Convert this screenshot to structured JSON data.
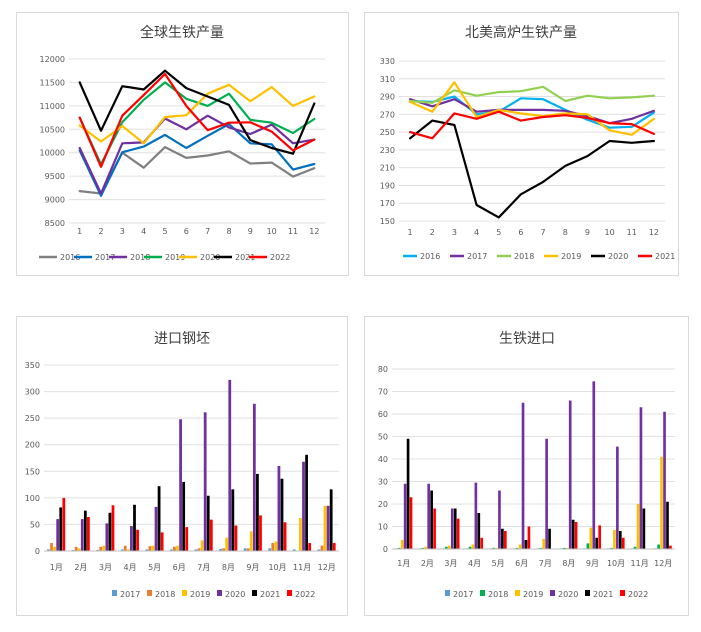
{
  "chart_data": [
    {
      "type": "line",
      "title": "全球生铁产量",
      "categories": [
        "1",
        "2",
        "3",
        "4",
        "5",
        "6",
        "7",
        "8",
        "9",
        "10",
        "11",
        "12"
      ],
      "yticks": [
        "8500",
        "9000",
        "9500",
        "10000",
        "10500",
        "11000",
        "11500",
        "12000"
      ],
      "ylim": [
        8500,
        12000
      ],
      "grid": true,
      "legend_position": "bottom",
      "series": [
        {
          "name": "2016",
          "color": "#808080",
          "values": [
            9180,
            9130,
            10000,
            9680,
            10120,
            9890,
            9940,
            10030,
            9770,
            9790,
            9490,
            9670
          ]
        },
        {
          "name": "2017",
          "color": "#0070c0",
          "values": [
            10050,
            9080,
            10010,
            10130,
            10380,
            10100,
            10360,
            10610,
            10200,
            10180,
            9640,
            9760
          ]
        },
        {
          "name": "2018",
          "color": "#7030a0",
          "values": [
            10100,
            9130,
            10200,
            10220,
            10730,
            10500,
            10790,
            10540,
            10400,
            10600,
            10200,
            10280
          ]
        },
        {
          "name": "2019",
          "color": "#00b050",
          "values": [
            10750,
            9750,
            10650,
            11130,
            11500,
            11150,
            11000,
            11260,
            10700,
            10640,
            10420,
            10720
          ]
        },
        {
          "name": "2020",
          "color": "#ffc000",
          "values": [
            10580,
            10240,
            10570,
            10200,
            10760,
            10800,
            11260,
            11450,
            11100,
            11400,
            11000,
            11200
          ]
        },
        {
          "name": "2021",
          "color": "#000000",
          "values": [
            11500,
            10470,
            11420,
            11350,
            11750,
            11380,
            11200,
            11020,
            10270,
            10100,
            9980,
            11050
          ]
        },
        {
          "name": "2022",
          "color": "#ff0000",
          "values": [
            10750,
            9700,
            10790,
            11230,
            11680,
            11000,
            10480,
            10640,
            10650,
            10450,
            10050,
            10280
          ]
        }
      ]
    },
    {
      "type": "line",
      "title": "北美高炉生铁产量",
      "categories": [
        "1",
        "2",
        "3",
        "4",
        "5",
        "6",
        "7",
        "8",
        "9",
        "10",
        "11",
        "12"
      ],
      "yticks": [
        "150",
        "170",
        "190",
        "210",
        "230",
        "250",
        "270",
        "290",
        "310",
        "330"
      ],
      "ylim": [
        150,
        330
      ],
      "grid": true,
      "legend_position": "bottom",
      "series": [
        {
          "name": "2016",
          "color": "#00b0f0",
          "values": [
            285,
            284,
            290,
            270,
            273,
            288,
            287,
            275,
            264,
            255,
            256,
            272
          ]
        },
        {
          "name": "2017",
          "color": "#7030a0",
          "values": [
            287,
            279,
            287,
            273,
            275,
            275,
            275,
            274,
            268,
            260,
            265,
            274
          ]
        },
        {
          "name": "2018",
          "color": "#92d050",
          "values": [
            285,
            283,
            297,
            291,
            295,
            296,
            301,
            285,
            291,
            288,
            289,
            291
          ]
        },
        {
          "name": "2019",
          "color": "#ffc000",
          "values": [
            284,
            273,
            306,
            267,
            275,
            271,
            268,
            271,
            270,
            252,
            247,
            265
          ]
        },
        {
          "name": "2020",
          "color": "#000000",
          "values": [
            243,
            263,
            258,
            168,
            154,
            180,
            194,
            212,
            223,
            240,
            238,
            240
          ]
        },
        {
          "name": "2021",
          "color": "#ff0000",
          "values": [
            250,
            243,
            271,
            265,
            273,
            263,
            267,
            269,
            266,
            260,
            259,
            248
          ]
        }
      ]
    },
    {
      "type": "bar",
      "title": "进口钢坯",
      "categories": [
        "1月",
        "2月",
        "3月",
        "4月",
        "5月",
        "6月",
        "7月",
        "8月",
        "9月",
        "10月",
        "11月",
        "12月"
      ],
      "yticks": [
        "0",
        "50",
        "100",
        "150",
        "200",
        "250",
        "300",
        "350"
      ],
      "ylim": [
        0,
        350
      ],
      "grid": true,
      "legend_position": "bottom",
      "series": [
        {
          "name": "2017",
          "color": "#5b9bd5",
          "values": [
            3,
            2,
            2,
            3,
            3,
            3,
            3,
            4,
            5,
            5,
            3,
            3
          ]
        },
        {
          "name": "2018",
          "color": "#ed7d31",
          "values": [
            15,
            8,
            8,
            10,
            9,
            8,
            5,
            5,
            5,
            15,
            1,
            10
          ]
        },
        {
          "name": "2019",
          "color": "#ffc000",
          "values": [
            8,
            5,
            10,
            3,
            10,
            10,
            20,
            25,
            37,
            18,
            62,
            85
          ]
        },
        {
          "name": "2020",
          "color": "#7030a0",
          "values": [
            60,
            60,
            52,
            47,
            83,
            248,
            261,
            322,
            277,
            160,
            168,
            85
          ]
        },
        {
          "name": "2021",
          "color": "#000000",
          "values": [
            82,
            76,
            72,
            87,
            122,
            130,
            104,
            116,
            145,
            136,
            181,
            116
          ]
        },
        {
          "name": "2022",
          "color": "#ff0000",
          "values": [
            100,
            64,
            86,
            40,
            35,
            45,
            59,
            48,
            67,
            54,
            15,
            15
          ]
        }
      ]
    },
    {
      "type": "bar",
      "title": "生铁进口",
      "categories": [
        "1月",
        "2月",
        "3月",
        "4月",
        "5月",
        "6月",
        "7月",
        "8月",
        "9月",
        "10月",
        "11月",
        "12月"
      ],
      "yticks": [
        "0",
        "10",
        "20",
        "30",
        "40",
        "50",
        "60",
        "70",
        "80"
      ],
      "ylim": [
        0,
        80
      ],
      "grid": true,
      "legend_position": "bottom",
      "series": [
        {
          "name": "2017",
          "color": "#5b9bd5",
          "values": [
            0.3,
            0.3,
            0.3,
            0.3,
            0.3,
            0.3,
            0.3,
            0.3,
            0.3,
            0.3,
            0.3,
            0.3
          ]
        },
        {
          "name": "2018",
          "color": "#00b050",
          "values": [
            0.5,
            0.5,
            1,
            1,
            0.5,
            0.5,
            0.5,
            0.5,
            2.5,
            0.5,
            1,
            2
          ]
        },
        {
          "name": "2019",
          "color": "#ffc000",
          "values": [
            4,
            1,
            1.5,
            2,
            0.5,
            2,
            4.5,
            0.5,
            9.5,
            8.5,
            20,
            41
          ]
        },
        {
          "name": "2020",
          "color": "#7030a0",
          "values": [
            29,
            29,
            18,
            29.5,
            26,
            65,
            49,
            66,
            74.5,
            45.5,
            63,
            61
          ]
        },
        {
          "name": "2021",
          "color": "#000000",
          "values": [
            49,
            26,
            18,
            16,
            9,
            4,
            9,
            13,
            5,
            8,
            18,
            21
          ]
        },
        {
          "name": "2022",
          "color": "#ff0000",
          "values": [
            23,
            18,
            13.5,
            5,
            8,
            10,
            0,
            12,
            10.5,
            5,
            0,
            1.5
          ]
        }
      ]
    }
  ]
}
